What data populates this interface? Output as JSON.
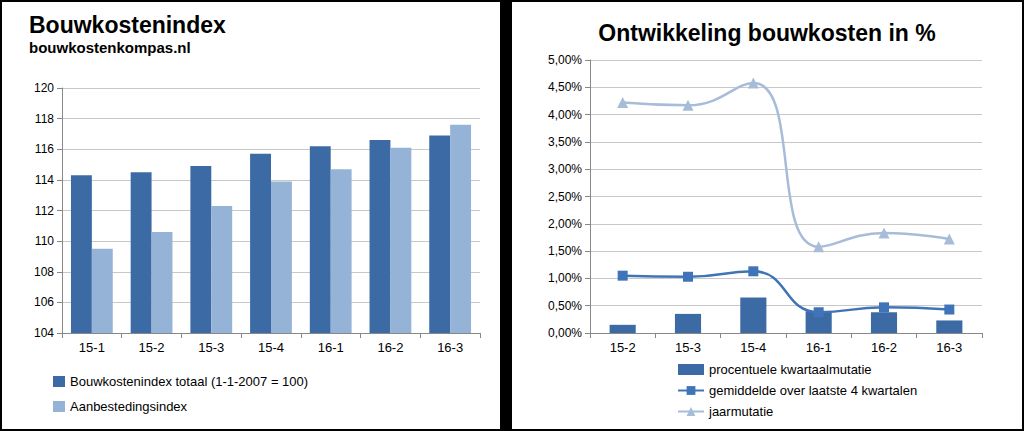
{
  "chart_data": [
    {
      "type": "bar",
      "title": "Bouwkostenindex",
      "subtitle": "bouwkostenkompas.nl",
      "categories": [
        "15-1",
        "15-2",
        "15-3",
        "15-4",
        "16-1",
        "16-2",
        "16-3"
      ],
      "series": [
        {
          "name": "Bouwkostenindex totaal (1-1-2007 = 100)",
          "color": "#3c6aa5",
          "values": [
            114.3,
            114.5,
            114.9,
            115.7,
            116.2,
            116.6,
            116.9
          ]
        },
        {
          "name": "Aanbestedingsindex",
          "color": "#95b3d7",
          "values": [
            109.5,
            110.6,
            112.3,
            113.9,
            114.7,
            116.1,
            117.6
          ]
        }
      ],
      "ylim": [
        104,
        120
      ],
      "yticks": [
        104,
        106,
        108,
        110,
        112,
        114,
        116,
        118,
        120
      ],
      "grid": true,
      "legend": "bottom"
    },
    {
      "type": "bar",
      "title": "Ontwikkeling bouwkosten in %",
      "categories": [
        "15-2",
        "15-3",
        "15-4",
        "16-1",
        "16-2",
        "16-3"
      ],
      "series": [
        {
          "name": "procentuele kwartaalmutatie",
          "type": "bar",
          "color": "#3c6aa5",
          "values": [
            0.15,
            0.35,
            0.65,
            0.4,
            0.38,
            0.23
          ]
        },
        {
          "name": "gemiddelde over laatste 4 kwartalen",
          "type": "line",
          "color": "#3f74b8",
          "marker": "square",
          "line_style": "solid",
          "values": [
            1.05,
            1.03,
            1.13,
            0.38,
            0.47,
            0.43
          ]
        },
        {
          "name": "jaarmutatie",
          "type": "line",
          "color": "#a7bcd9",
          "marker": "triangle",
          "line_style": "solid",
          "values": [
            4.22,
            4.17,
            4.58,
            1.58,
            1.83,
            1.72
          ]
        }
      ],
      "ylim": [
        0,
        5
      ],
      "yticks": [
        {
          "value": 0,
          "label": "0,00%"
        },
        {
          "value": 0.5,
          "label": "0,50%"
        },
        {
          "value": 1,
          "label": "1,00%"
        },
        {
          "value": 1.5,
          "label": "1,50%"
        },
        {
          "value": 2,
          "label": "2,00%"
        },
        {
          "value": 2.5,
          "label": "2,50%"
        },
        {
          "value": 3,
          "label": "3,00%"
        },
        {
          "value": 3.5,
          "label": "3,50%"
        },
        {
          "value": 4,
          "label": "4,00%"
        },
        {
          "value": 4.5,
          "label": "4,50%"
        },
        {
          "value": 5,
          "label": "5,00%"
        }
      ],
      "grid": true,
      "legend": "bottom"
    }
  ]
}
